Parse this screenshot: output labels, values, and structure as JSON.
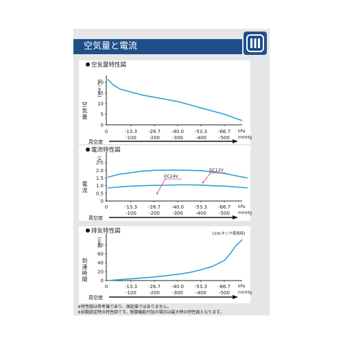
{
  "header": {
    "title": "空気量と電流"
  },
  "notes": [
    "※特性図は参考値であり、保証値ではありません。",
    "※初期設定時の特性図です。制御機能付加の場合は最大時の特性図となります。"
  ],
  "chart_data": [
    {
      "type": "line",
      "title": "●空気量特性図",
      "ylabel": "空気量",
      "yunit": "[L / min]",
      "xlabel": "真空度",
      "xunits": [
        "kPa",
        "mmHg"
      ],
      "xticks_kpa": [
        "0",
        "-13.3",
        "-26.7",
        "-40.0",
        "-53.3",
        "-66.7"
      ],
      "xticks_mmhg": [
        "-100",
        "-200",
        "-300",
        "-400",
        "-500"
      ],
      "yticks": [
        "0",
        "5",
        "10",
        "15",
        "20"
      ],
      "ylim": [
        0,
        22
      ],
      "xlim": [
        0,
        -80
      ],
      "series": [
        {
          "name": "",
          "x": [
            0,
            -3,
            -6.7,
            -13.3,
            -20,
            -26.7,
            -33.3,
            -40,
            -46.7,
            -53.3,
            -60,
            -66.7,
            -73.3,
            -77
          ],
          "y": [
            21.5,
            19,
            17,
            15.5,
            14,
            13,
            12,
            11,
            9.5,
            8,
            6.5,
            5,
            3,
            2
          ]
        }
      ]
    },
    {
      "type": "line",
      "title": "●電流特性図",
      "ylabel": "電流",
      "yunit": "[A]",
      "xlabel": "真空度",
      "xunits": [
        "kPa",
        "mmHg"
      ],
      "xticks_kpa": [
        "0",
        "-13.3",
        "-26.7",
        "-40.0",
        "-53.3",
        "-66.7"
      ],
      "xticks_mmhg": [
        "-100",
        "-200",
        "-300",
        "-400",
        "-500"
      ],
      "yticks": [
        "0",
        "0.5",
        "1.0",
        "1.5",
        "2.0",
        "2.5"
      ],
      "ylim": [
        0,
        3.0
      ],
      "xlim": [
        0,
        -80
      ],
      "annotations": [
        "DC24V",
        "DC12V"
      ],
      "series": [
        {
          "name": "DC12V",
          "x": [
            0,
            -6.7,
            -13.3,
            -20,
            -26.7,
            -33.3,
            -40,
            -46.7,
            -53.3,
            -60,
            -66.7,
            -73.3,
            -80
          ],
          "y": [
            1.55,
            1.75,
            1.85,
            1.95,
            2.0,
            2.02,
            2.02,
            2.0,
            1.98,
            1.9,
            1.8,
            1.65,
            1.5
          ]
        },
        {
          "name": "DC24V",
          "x": [
            0,
            -6.7,
            -13.3,
            -20,
            -26.7,
            -33.3,
            -40,
            -46.7,
            -53.3,
            -60,
            -66.7,
            -73.3,
            -80
          ],
          "y": [
            0.85,
            0.92,
            0.97,
            1.0,
            1.02,
            1.03,
            1.05,
            1.05,
            1.04,
            1.0,
            0.97,
            0.92,
            0.85
          ]
        }
      ]
    },
    {
      "type": "line",
      "title": "●排気特性図",
      "note": "[10Lタンク使用時]",
      "ylabel": "到達時間",
      "yunit": "[sec]",
      "xlabel": "真空度",
      "xunits": [
        "kPa",
        "mmHg"
      ],
      "xticks_kpa": [
        "0",
        "-13.3",
        "-26.7",
        "-40.0",
        "-53.3",
        "-66.7"
      ],
      "xticks_mmhg": [
        "-100",
        "-200",
        "-300",
        "-400",
        "-500"
      ],
      "yticks": [
        "0",
        "20",
        "40",
        "60",
        "80"
      ],
      "ylim": [
        0,
        100
      ],
      "xlim": [
        0,
        -80
      ],
      "series": [
        {
          "name": "",
          "x": [
            0,
            -6.7,
            -13.3,
            -20,
            -26.7,
            -33.3,
            -40,
            -46.7,
            -53.3,
            -60,
            -66.7,
            -70,
            -73.3,
            -77
          ],
          "y": [
            0,
            2,
            4,
            6,
            8,
            11,
            14,
            18,
            24,
            32,
            45,
            60,
            78,
            92
          ]
        }
      ]
    }
  ]
}
